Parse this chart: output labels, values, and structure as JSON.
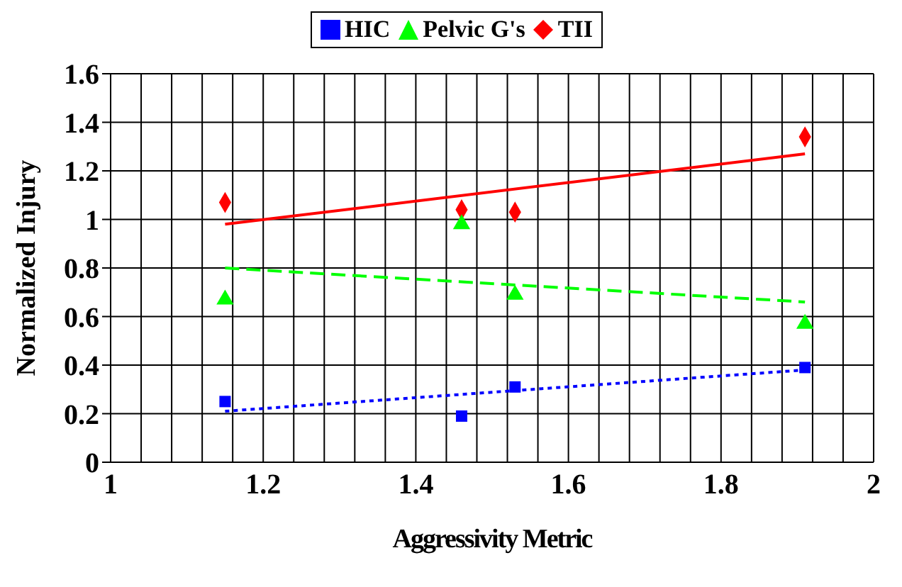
{
  "chart_data": {
    "type": "scatter",
    "xlabel": "Aggressivity Metric",
    "ylabel": "Normalized Injury",
    "series": [
      {
        "name": "TII",
        "color": "#ff0000",
        "marker": "diamond",
        "x": [
          1.15,
          1.46,
          1.53,
          1.91
        ],
        "values": [
          1.07,
          1.04,
          1.03,
          1.34
        ]
      },
      {
        "name": "HIC",
        "color": "#0000ff",
        "marker": "square",
        "x": [
          1.15,
          1.46,
          1.53,
          1.91
        ],
        "values": [
          0.25,
          0.19,
          0.31,
          0.39
        ]
      },
      {
        "name": "Pelvic G's",
        "color": "#00ff00",
        "marker": "triangle",
        "x": [
          1.15,
          1.46,
          1.53,
          1.91
        ],
        "values": [
          0.67,
          0.98,
          0.69,
          0.57
        ]
      },
      {
        "type": "line",
        "color": "#ff0000",
        "line_style": "solid",
        "x": [
          1.15,
          1.91
        ],
        "values": [
          0.98,
          1.27
        ]
      },
      {
        "type": "line",
        "color": "#0000ff",
        "line_style": "dotted",
        "x": [
          1.15,
          1.91
        ],
        "values": [
          0.21,
          0.38
        ]
      },
      {
        "type": "line",
        "color": "#00ff00",
        "line_style": "dashed",
        "x": [
          1.15,
          1.91
        ],
        "values": [
          0.8,
          0.66
        ]
      }
    ],
    "xlim": [
      1,
      2
    ],
    "xticks": [
      1,
      {
        "value": 1.04,
        "label": null
      },
      {
        "value": 1.08,
        "label": null
      },
      {
        "value": 1.12,
        "label": null
      },
      {
        "value": 1.16,
        "label": null
      },
      1.2,
      {
        "value": 1.24,
        "label": null
      },
      {
        "value": 1.28,
        "label": null
      },
      {
        "value": 1.32,
        "label": null
      },
      {
        "value": 1.36,
        "label": null
      },
      1.4,
      {
        "value": 1.44,
        "label": null
      },
      {
        "value": 1.48,
        "label": null
      },
      {
        "value": 1.52,
        "label": null
      },
      {
        "value": 1.56,
        "label": null
      },
      1.6,
      {
        "value": 1.64,
        "label": null
      },
      {
        "value": 1.68,
        "label": null
      },
      {
        "value": 1.72,
        "label": null
      },
      {
        "value": 1.76,
        "label": null
      },
      1.8,
      {
        "value": 1.84,
        "label": null
      },
      {
        "value": 1.88,
        "label": null
      },
      {
        "value": 1.92,
        "label": null
      },
      {
        "value": 1.96,
        "label": null
      },
      2
    ],
    "ylim": [
      0,
      1.6
    ],
    "yticks": [
      0,
      0.2,
      0.4,
      0.6,
      0.8,
      1,
      1.2,
      1.4,
      1.6
    ],
    "grid": true,
    "legend": "top"
  }
}
